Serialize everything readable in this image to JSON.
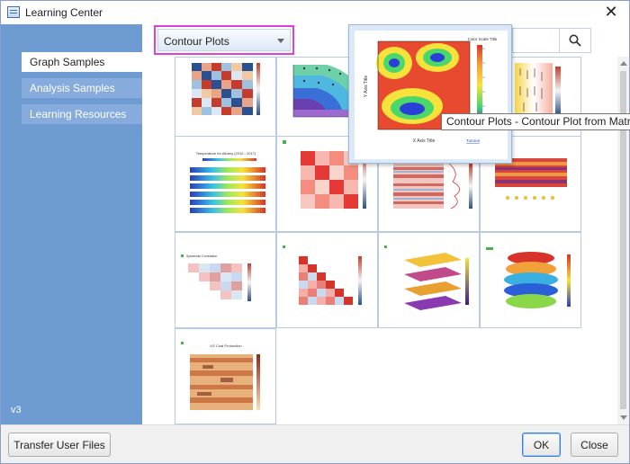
{
  "window": {
    "title": "Learning Center",
    "close_glyph": "✕",
    "icon": "learning-center-app-icon"
  },
  "sidebar": {
    "items": [
      {
        "label": "Graph Samples",
        "active": true
      },
      {
        "label": "Analysis Samples",
        "active": false
      },
      {
        "label": "Learning Resources",
        "active": false
      }
    ],
    "version": "v3"
  },
  "category": {
    "selected": "Contour Plots",
    "highlight_color": "#e040d8"
  },
  "search": {
    "value": "",
    "icon": "search-icon"
  },
  "preview": {
    "axis_x": "X Axis Title",
    "axis_y": "Y Axis Title",
    "colorbar_title": "Color Scale Title",
    "link": "Tutorial",
    "tooltip": "Contour Plots - Contour Plot from Matrix"
  },
  "thumbnails": [
    {
      "title": ""
    },
    {
      "title": ""
    },
    {
      "title": ""
    },
    {
      "title": "Temperature for Albany (2010 - 2017)"
    },
    {
      "title": ""
    },
    {
      "title": ""
    },
    {
      "title": ""
    },
    {
      "title": "Spearman Correlation"
    },
    {
      "title": ""
    },
    {
      "title": ""
    },
    {
      "title": ""
    },
    {
      "title": "US Coal Production"
    }
  ],
  "footer": {
    "transfer_label": "Transfer User Files",
    "ok_label": "OK",
    "close_label": "Close"
  },
  "colors": {
    "sidebar": "#6f9bd3",
    "sidebar_item": "#86abdc",
    "tile_border": "#b8cbe4",
    "accent": "#3c7fd8"
  }
}
